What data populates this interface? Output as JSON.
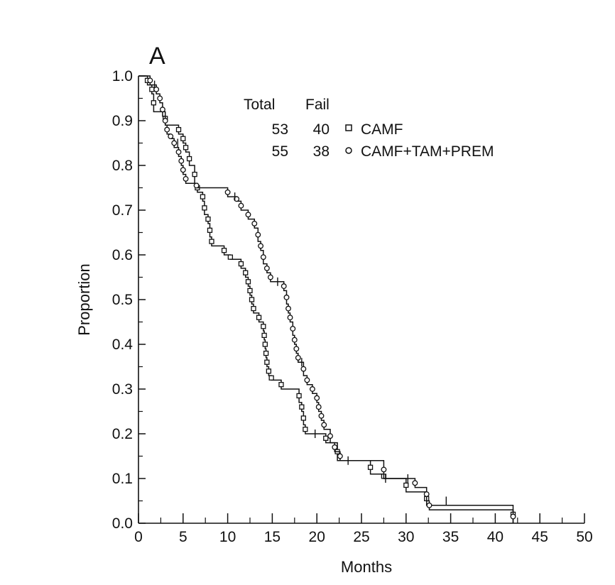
{
  "chart_data": {
    "type": "line",
    "panel_label": "A",
    "xlabel": "Months",
    "ylabel": "Proportion",
    "xlim": [
      0,
      50
    ],
    "ylim": [
      0,
      1.0
    ],
    "x_ticks": [
      0,
      5,
      10,
      15,
      20,
      25,
      30,
      35,
      40,
      45,
      50
    ],
    "x_tick_labels": [
      "0",
      "5",
      "10",
      "15",
      "20",
      "25",
      "30",
      "35",
      "40",
      "45",
      "50"
    ],
    "y_ticks": [
      0,
      0.1,
      0.2,
      0.3,
      0.4,
      0.5,
      0.6,
      0.7,
      0.8,
      0.9,
      1.0
    ],
    "y_tick_labels": [
      "0.0",
      "0.1",
      "0.2",
      "0.3",
      "0.4",
      "0.5",
      "0.6",
      "0.7",
      "0.8",
      "0.9",
      "1.0"
    ],
    "grid": false,
    "legend": {
      "position": "top-right",
      "header_total": "Total",
      "header_fail": "Fail",
      "entries": [
        {
          "total": "53",
          "fail": "40",
          "symbol": "□",
          "label": "CAMF"
        },
        {
          "total": "55",
          "fail": "38",
          "symbol": "○",
          "label": "CAMF+TAM+PREM"
        }
      ]
    },
    "series": [
      {
        "name": "CAMF",
        "marker": "square",
        "points": [
          [
            0,
            1.0
          ],
          [
            1.0,
            0.98
          ],
          [
            1.5,
            0.96
          ],
          [
            1.7,
            0.92
          ],
          [
            3.0,
            0.89
          ],
          [
            4.5,
            0.87
          ],
          [
            5.0,
            0.85
          ],
          [
            5.3,
            0.83
          ],
          [
            5.7,
            0.8
          ],
          [
            6.3,
            0.76
          ],
          [
            6.6,
            0.74
          ],
          [
            7.2,
            0.72
          ],
          [
            7.4,
            0.69
          ],
          [
            7.8,
            0.67
          ],
          [
            8.0,
            0.64
          ],
          [
            8.2,
            0.62
          ],
          [
            9.6,
            0.6
          ],
          [
            10.3,
            0.59
          ],
          [
            11.5,
            0.57
          ],
          [
            12.0,
            0.55
          ],
          [
            12.3,
            0.53
          ],
          [
            12.5,
            0.51
          ],
          [
            12.7,
            0.49
          ],
          [
            12.9,
            0.47
          ],
          [
            13.5,
            0.45
          ],
          [
            14.0,
            0.43
          ],
          [
            14.1,
            0.41
          ],
          [
            14.2,
            0.39
          ],
          [
            14.3,
            0.37
          ],
          [
            14.4,
            0.35
          ],
          [
            14.6,
            0.33
          ],
          [
            14.9,
            0.32
          ],
          [
            16.0,
            0.3
          ],
          [
            18.0,
            0.27
          ],
          [
            18.3,
            0.25
          ],
          [
            18.5,
            0.22
          ],
          [
            18.7,
            0.2
          ],
          [
            21.0,
            0.18
          ],
          [
            22.3,
            0.14
          ],
          [
            26.0,
            0.11
          ],
          [
            27.5,
            0.1
          ],
          [
            30.0,
            0.07
          ],
          [
            32.3,
            0.04
          ],
          [
            42.0,
            0.0
          ]
        ],
        "censored": [
          [
            1.8,
            0.98
          ],
          [
            4.4,
            0.85
          ],
          [
            19.8,
            0.2
          ],
          [
            27.7,
            0.1
          ]
        ]
      },
      {
        "name": "CAMF+TAM+PREM",
        "marker": "circle",
        "points": [
          [
            0,
            1.0
          ],
          [
            1.3,
            0.98
          ],
          [
            2.0,
            0.96
          ],
          [
            2.4,
            0.94
          ],
          [
            2.7,
            0.91
          ],
          [
            3.0,
            0.89
          ],
          [
            3.2,
            0.87
          ],
          [
            3.6,
            0.86
          ],
          [
            4.0,
            0.84
          ],
          [
            4.5,
            0.82
          ],
          [
            4.8,
            0.8
          ],
          [
            5.0,
            0.78
          ],
          [
            5.3,
            0.76
          ],
          [
            6.5,
            0.75
          ],
          [
            10.0,
            0.73
          ],
          [
            11.0,
            0.72
          ],
          [
            11.5,
            0.7
          ],
          [
            12.3,
            0.68
          ],
          [
            13.0,
            0.66
          ],
          [
            13.4,
            0.63
          ],
          [
            13.7,
            0.61
          ],
          [
            14.0,
            0.58
          ],
          [
            14.4,
            0.56
          ],
          [
            14.8,
            0.54
          ],
          [
            16.3,
            0.52
          ],
          [
            16.6,
            0.49
          ],
          [
            16.8,
            0.47
          ],
          [
            17.0,
            0.45
          ],
          [
            17.3,
            0.42
          ],
          [
            17.5,
            0.4
          ],
          [
            17.7,
            0.38
          ],
          [
            17.9,
            0.36
          ],
          [
            18.5,
            0.33
          ],
          [
            18.9,
            0.31
          ],
          [
            19.5,
            0.29
          ],
          [
            20.0,
            0.27
          ],
          [
            20.2,
            0.25
          ],
          [
            20.5,
            0.23
          ],
          [
            20.8,
            0.21
          ],
          [
            21.5,
            0.18
          ],
          [
            22.0,
            0.16
          ],
          [
            22.6,
            0.14
          ],
          [
            27.5,
            0.1
          ],
          [
            31.0,
            0.08
          ],
          [
            32.3,
            0.05
          ],
          [
            32.6,
            0.03
          ],
          [
            42.0,
            0.0
          ]
        ],
        "censored": [
          [
            10.8,
            0.73
          ],
          [
            15.6,
            0.54
          ],
          [
            18.3,
            0.36
          ],
          [
            23.5,
            0.14
          ],
          [
            30.2,
            0.1
          ],
          [
            34.5,
            0.05
          ]
        ]
      }
    ]
  }
}
